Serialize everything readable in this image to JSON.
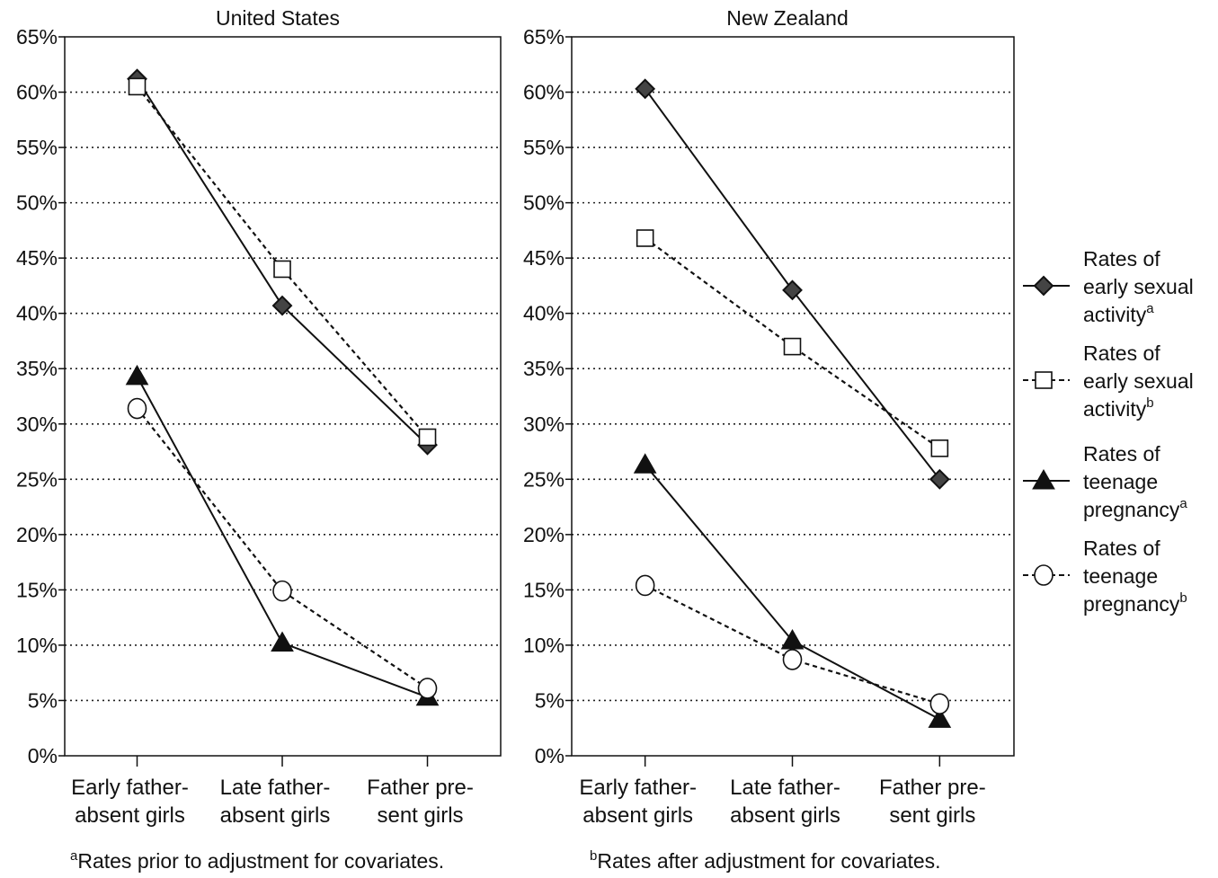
{
  "chart_data": [
    {
      "type": "line",
      "title": "United States",
      "categories": [
        "Early father-absent girls",
        "Late father-absent girls",
        "Father present girls"
      ],
      "category_lines": [
        [
          "Early father-",
          "absent girls"
        ],
        [
          "Late father-",
          "absent girls"
        ],
        [
          "Father pre-",
          "sent girls"
        ]
      ],
      "ylim": [
        0,
        65
      ],
      "yticks": [
        "0%",
        "5%",
        "10%",
        "15%",
        "20%",
        "25%",
        "30%",
        "35%",
        "40%",
        "45%",
        "50%",
        "55%",
        "60%",
        "65%"
      ],
      "grid": "horizontal dotted",
      "series": [
        {
          "name": "Rates of early sexual activity (a)",
          "values": [
            61.2,
            40.7,
            28.1
          ],
          "marker": "diamond-filled",
          "line": "solid"
        },
        {
          "name": "Rates of early sexual activity (b)",
          "values": [
            60.5,
            44.0,
            28.8
          ],
          "marker": "square-open",
          "line": "dashed"
        },
        {
          "name": "Rates of teenage pregnancy (a)",
          "values": [
            34.3,
            10.2,
            5.3
          ],
          "marker": "triangle-filled",
          "line": "solid"
        },
        {
          "name": "Rates of teenage pregnancy (b)",
          "values": [
            31.4,
            14.9,
            6.1
          ],
          "marker": "circle-open",
          "line": "dashed"
        }
      ],
      "footnote": {
        "sup": "a",
        "text": "Rates prior to adjustment for covariates."
      }
    },
    {
      "type": "line",
      "title": "New Zealand",
      "categories": [
        "Early father-absent girls",
        "Late father-absent girls",
        "Father present girls"
      ],
      "category_lines": [
        [
          "Early father-",
          "absent girls"
        ],
        [
          "Late father-",
          "absent girls"
        ],
        [
          "Father pre-",
          "sent girls"
        ]
      ],
      "ylim": [
        0,
        65
      ],
      "yticks": [
        "0%",
        "5%",
        "10%",
        "15%",
        "20%",
        "25%",
        "30%",
        "35%",
        "40%",
        "45%",
        "50%",
        "55%",
        "60%",
        "65%"
      ],
      "grid": "horizontal dotted",
      "series": [
        {
          "name": "Rates of early sexual activity (a)",
          "values": [
            60.3,
            42.1,
            25.0
          ],
          "marker": "diamond-filled",
          "line": "solid"
        },
        {
          "name": "Rates of early sexual activity (b)",
          "values": [
            46.8,
            37.0,
            27.8
          ],
          "marker": "square-open",
          "line": "dashed"
        },
        {
          "name": "Rates of teenage pregnancy (a)",
          "values": [
            26.3,
            10.4,
            3.3
          ],
          "marker": "triangle-filled",
          "line": "solid"
        },
        {
          "name": "Rates of teenage pregnancy (b)",
          "values": [
            15.4,
            8.7,
            4.7
          ],
          "marker": "circle-open",
          "line": "dashed"
        }
      ],
      "footnote": {
        "sup": "b",
        "text": "Rates after adjustment for covariates."
      }
    }
  ],
  "legend": {
    "placement": "right",
    "entries": [
      {
        "marker": "diamond-filled",
        "line": "solid",
        "lines": [
          "Rates of",
          "early sexual",
          "activity"
        ],
        "sup": "a"
      },
      {
        "marker": "square-open",
        "line": "dashed",
        "lines": [
          "Rates of",
          "early sexual",
          "activity"
        ],
        "sup": "b"
      },
      {
        "marker": "triangle-filled",
        "line": "solid",
        "lines": [
          "Rates of",
          "teenage",
          "pregnancy"
        ],
        "sup": "a"
      },
      {
        "marker": "circle-open",
        "line": "dashed",
        "lines": [
          "Rates of",
          "teenage",
          "pregnancy"
        ],
        "sup": "b"
      }
    ]
  },
  "colors": {
    "ink": "#111111",
    "grid": "#222222",
    "background": "#ffffff"
  }
}
